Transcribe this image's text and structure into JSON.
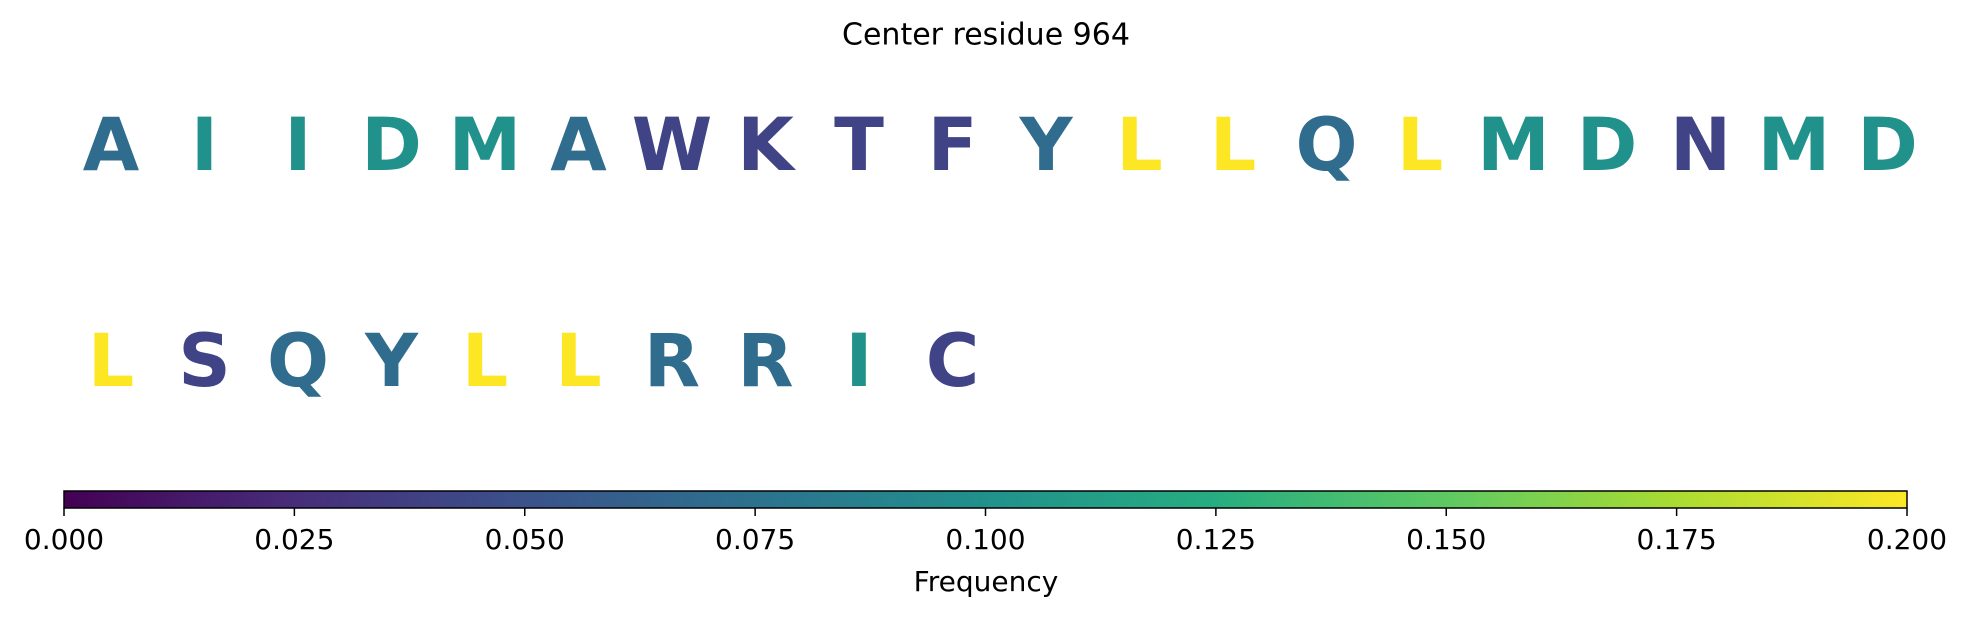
{
  "chart_data": {
    "type": "sequence",
    "title": "Center residue 964",
    "categories": [
      "A",
      "I",
      "I",
      "D",
      "M",
      "A",
      "W",
      "K",
      "T",
      "F",
      "Y",
      "L",
      "L",
      "Q",
      "L",
      "M",
      "D",
      "N",
      "M",
      "D",
      "L",
      "S",
      "Q",
      "Y",
      "L",
      "L",
      "R",
      "R",
      "I",
      "C"
    ],
    "values": [
      0.07,
      0.1,
      0.1,
      0.1,
      0.1,
      0.07,
      0.04,
      0.04,
      0.04,
      0.04,
      0.07,
      0.2,
      0.2,
      0.07,
      0.2,
      0.1,
      0.1,
      0.04,
      0.1,
      0.1,
      0.2,
      0.04,
      0.07,
      0.07,
      0.2,
      0.2,
      0.07,
      0.07,
      0.1,
      0.04
    ],
    "colormap": "viridis",
    "colorbar_label": "Frequency",
    "clim": [
      0,
      0.2
    ],
    "cticks": [
      {
        "value": 0,
        "label": "0.000"
      },
      {
        "value": 0.025,
        "label": "0.025"
      },
      {
        "value": 0.05,
        "label": "0.050"
      },
      {
        "value": 0.075,
        "label": "0.075"
      },
      {
        "value": 0.1,
        "label": "0.100"
      },
      {
        "value": 0.125,
        "label": "0.125"
      },
      {
        "value": 0.15,
        "label": "0.150"
      },
      {
        "value": 0.175,
        "label": "0.175"
      },
      {
        "value": 0.2,
        "label": "0.200"
      }
    ]
  }
}
